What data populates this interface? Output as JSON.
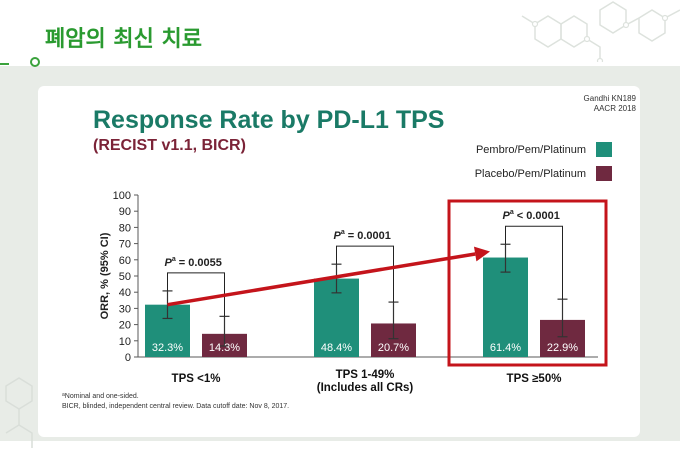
{
  "header": {
    "title": "폐암의 최신 치료"
  },
  "slide": {
    "source_line1": "Gandhi KN189",
    "source_line2": "AACR 2018",
    "footnote_marker": "a",
    "footnote_line1": "Nominal and one-sided.",
    "footnote_line2": "BICR, blinded, independent central review. Data cutoff date: Nov 8, 2017."
  },
  "colors": {
    "header_green": "#2a9a30",
    "title_teal": "#1a7a66",
    "subtitle_maroon": "#7b2337",
    "highlight_red": "#c4141b",
    "panel_background": "#e8ece7"
  },
  "chart_data": {
    "type": "bar",
    "title": "Response Rate by PD-L1 TPS",
    "subtitle": "(RECIST v1.1, BICR)",
    "xlabel": "",
    "ylabel": "ORR, % (95% CI)",
    "ylim": [
      0,
      100
    ],
    "yticks": [
      0,
      10,
      20,
      30,
      40,
      50,
      60,
      70,
      80,
      90,
      100
    ],
    "grid": false,
    "legend_position": "top-right",
    "categories": [
      "TPS <1%",
      "TPS 1-49%",
      "TPS ≥50%"
    ],
    "category_notes": [
      "",
      "(Includes all CRs)",
      ""
    ],
    "series": [
      {
        "name": "Pembro/Pem/Platinum",
        "values": [
          32.3,
          48.4,
          61.4
        ],
        "labels": [
          "32.3%",
          "48.4%",
          "61.4%"
        ],
        "ci_low": [
          23.8,
          39.6,
          52.4
        ],
        "ci_high": [
          40.8,
          57.3,
          69.6
        ],
        "color": "#1f8f7a"
      },
      {
        "name": "Placebo/Pem/Platinum",
        "values": [
          14.3,
          20.7,
          22.9
        ],
        "labels": [
          "14.3%",
          "20.7%",
          "22.9%"
        ],
        "ci_low": [
          6.8,
          11.3,
          12.5
        ],
        "ci_high": [
          25.1,
          33.9,
          35.7
        ],
        "color": "#6f2940"
      }
    ],
    "p_values": [
      {
        "symbol": "P",
        "sup": "a",
        "text": "= 0.0055"
      },
      {
        "symbol": "P",
        "sup": "a",
        "text": "= 0.0001"
      },
      {
        "symbol": "P",
        "sup": "a",
        "text": "< 0.0001"
      }
    ],
    "highlight_index": 2,
    "trend_arrow": {
      "from_index": 0,
      "to_index": 2
    }
  }
}
